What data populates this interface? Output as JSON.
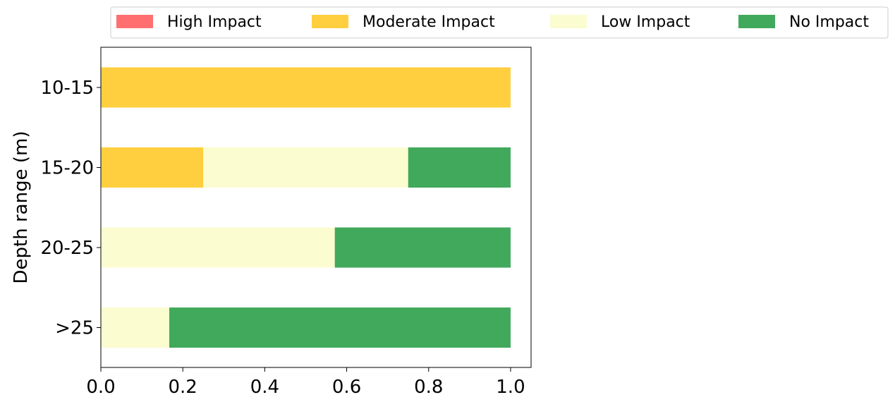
{
  "chart_data": {
    "type": "bar",
    "orientation": "horizontal",
    "stacked": true,
    "title": "",
    "xlabel": "",
    "ylabel": "Depth range (m)",
    "xlim": [
      0,
      1.05
    ],
    "xticks": [
      "0.0",
      "0.2",
      "0.4",
      "0.6",
      "0.8",
      "1.0"
    ],
    "grid": false,
    "legend_position": "top",
    "categories": [
      "10-15",
      "15-20",
      "20-25",
      ">25"
    ],
    "series": [
      {
        "name": "High Impact",
        "color": "#ff6f6f",
        "values": [
          0,
          0,
          0,
          0
        ]
      },
      {
        "name": "Moderate Impact",
        "color": "#ffcf3f",
        "values": [
          1.0,
          0.25,
          0,
          0
        ]
      },
      {
        "name": "Low Impact",
        "color": "#fbfcd0",
        "values": [
          0,
          0.5,
          0.571,
          0.167
        ]
      },
      {
        "name": "No Impact",
        "color": "#41a95b",
        "values": [
          0,
          0.25,
          0.429,
          0.833
        ]
      }
    ]
  }
}
